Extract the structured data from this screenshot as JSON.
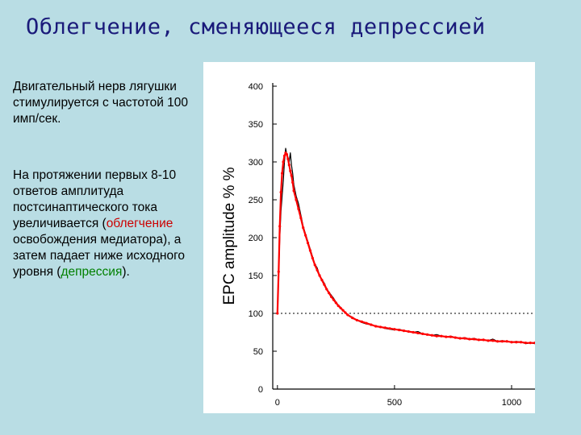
{
  "slide": {
    "title": "Облегчение, сменяющееся депрессией",
    "paragraph1": "Двигательный нерв лягушки стимулируется с частотой 100 имп/сек.",
    "paragraph2": {
      "before": "На протяжении первых 8-10 ответов амплитуда постсинаптического тока увеличивается (",
      "highlight1": "облегчение",
      "middle": " освобождения медиатора), а затем падает ниже исходного уровня (",
      "highlight2": "депрессия",
      "after": ")."
    },
    "colors": {
      "background": "#b9dde4",
      "title": "#1a1a7a",
      "highlight1": "#cc0000",
      "highlight2": "#008000"
    }
  },
  "chart_data": {
    "type": "line",
    "ylabel": "EPC amplitude % %",
    "xlabel": "",
    "xlim": [
      -20,
      1100
    ],
    "ylim": [
      0,
      400
    ],
    "x_ticks": [
      0,
      500,
      1000
    ],
    "y_ticks": [
      0,
      50,
      100,
      150,
      200,
      250,
      300,
      350,
      400
    ],
    "reference_line": {
      "y": 100,
      "style": "dotted"
    },
    "grid": false,
    "series": [
      {
        "color": "#000000",
        "x": [
          0,
          5,
          10,
          15,
          20,
          25,
          30,
          35,
          40,
          45,
          50,
          55,
          60,
          65,
          70,
          80,
          90,
          100,
          110,
          120,
          130,
          140,
          150,
          160,
          170,
          180,
          190,
          200,
          210,
          220,
          230,
          240,
          250,
          260,
          270,
          280,
          290,
          300,
          320,
          340,
          360,
          380,
          400,
          420,
          440,
          460,
          480,
          500,
          520,
          540,
          560,
          580,
          600,
          620,
          640,
          660,
          680,
          700,
          720,
          740,
          760,
          780,
          800,
          820,
          840,
          860,
          880,
          900,
          920,
          940,
          960,
          980,
          1000,
          1020,
          1040,
          1060,
          1080,
          1100
        ],
        "values": [
          100,
          150,
          200,
          235,
          255,
          275,
          300,
          318,
          310,
          305,
          300,
          312,
          296,
          285,
          270,
          255,
          245,
          230,
          215,
          205,
          195,
          185,
          175,
          165,
          160,
          150,
          145,
          140,
          133,
          128,
          124,
          120,
          115,
          111,
          108,
          104,
          101,
          98,
          95,
          91,
          88,
          86,
          85,
          83,
          82,
          80,
          79,
          78,
          79,
          77,
          76,
          75,
          76,
          73,
          72,
          71,
          72,
          70,
          69,
          70,
          68,
          67,
          68,
          66,
          67,
          65,
          65,
          64,
          66,
          63,
          64,
          63,
          62,
          63,
          62,
          60,
          61,
          60
        ]
      },
      {
        "color": "#ff0000",
        "x": [
          0,
          5,
          10,
          15,
          20,
          25,
          30,
          35,
          40,
          45,
          50,
          55,
          60,
          65,
          70,
          80,
          90,
          100,
          110,
          120,
          130,
          140,
          150,
          160,
          170,
          180,
          190,
          200,
          210,
          220,
          230,
          240,
          250,
          260,
          270,
          280,
          290,
          300,
          320,
          340,
          360,
          380,
          400,
          420,
          440,
          460,
          480,
          500,
          520,
          540,
          560,
          580,
          600,
          620,
          640,
          660,
          680,
          700,
          720,
          740,
          760,
          780,
          800,
          820,
          840,
          860,
          880,
          900,
          920,
          940,
          960,
          980,
          1000,
          1020,
          1040,
          1060,
          1080,
          1100
        ],
        "values": [
          100,
          155,
          215,
          260,
          285,
          300,
          308,
          312,
          310,
          304,
          296,
          288,
          282,
          273,
          262,
          250,
          238,
          226,
          213,
          203,
          193,
          183,
          173,
          164,
          157,
          150,
          144,
          138,
          132,
          127,
          122,
          118,
          114,
          110,
          107,
          104,
          101,
          98,
          94,
          91,
          89,
          87,
          85,
          83,
          82,
          81,
          80,
          79,
          78,
          77,
          76,
          75,
          74,
          73,
          72,
          71,
          70,
          70,
          69,
          69,
          68,
          67,
          67,
          66,
          66,
          65,
          65,
          64,
          64,
          63,
          63,
          63,
          62,
          62,
          62,
          61,
          61,
          61
        ]
      }
    ]
  }
}
